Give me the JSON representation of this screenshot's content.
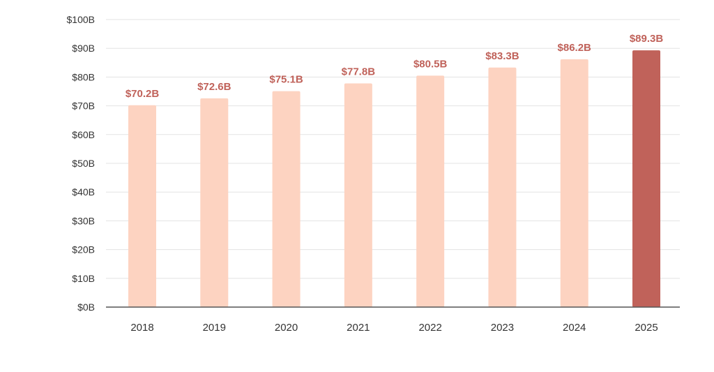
{
  "chart_data": {
    "type": "bar",
    "title": "",
    "xlabel": "",
    "ylabel": "",
    "categories": [
      "2018",
      "2019",
      "2020",
      "2021",
      "2022",
      "2023",
      "2024",
      "2025"
    ],
    "series": [
      {
        "values": [
          70.2,
          72.6,
          75.1,
          77.8,
          80.5,
          83.3,
          86.2,
          89.3
        ]
      }
    ],
    "data_labels": [
      "$70.2B",
      "$72.6B",
      "$75.1B",
      "$77.8B",
      "$80.5B",
      "$83.3B",
      "$86.2B",
      "$89.3B"
    ],
    "ylim": [
      0,
      100
    ],
    "y_ticks": [
      0,
      10,
      20,
      30,
      40,
      50,
      60,
      70,
      80,
      90,
      100
    ],
    "y_tick_labels": [
      "$0B",
      "$10B",
      "$20B",
      "$30B",
      "$40B",
      "$50B",
      "$60B",
      "$70B",
      "$80B",
      "$90B",
      "$100B"
    ],
    "grid": true,
    "highlighted_category": "2025",
    "colors": {
      "bar": "#fdd3c1",
      "highlight_bar": "#c0625a",
      "data_label": "#c0625a",
      "gridline": "#e3e3e3",
      "axis": "#555555",
      "tick_text": "#333333"
    }
  }
}
